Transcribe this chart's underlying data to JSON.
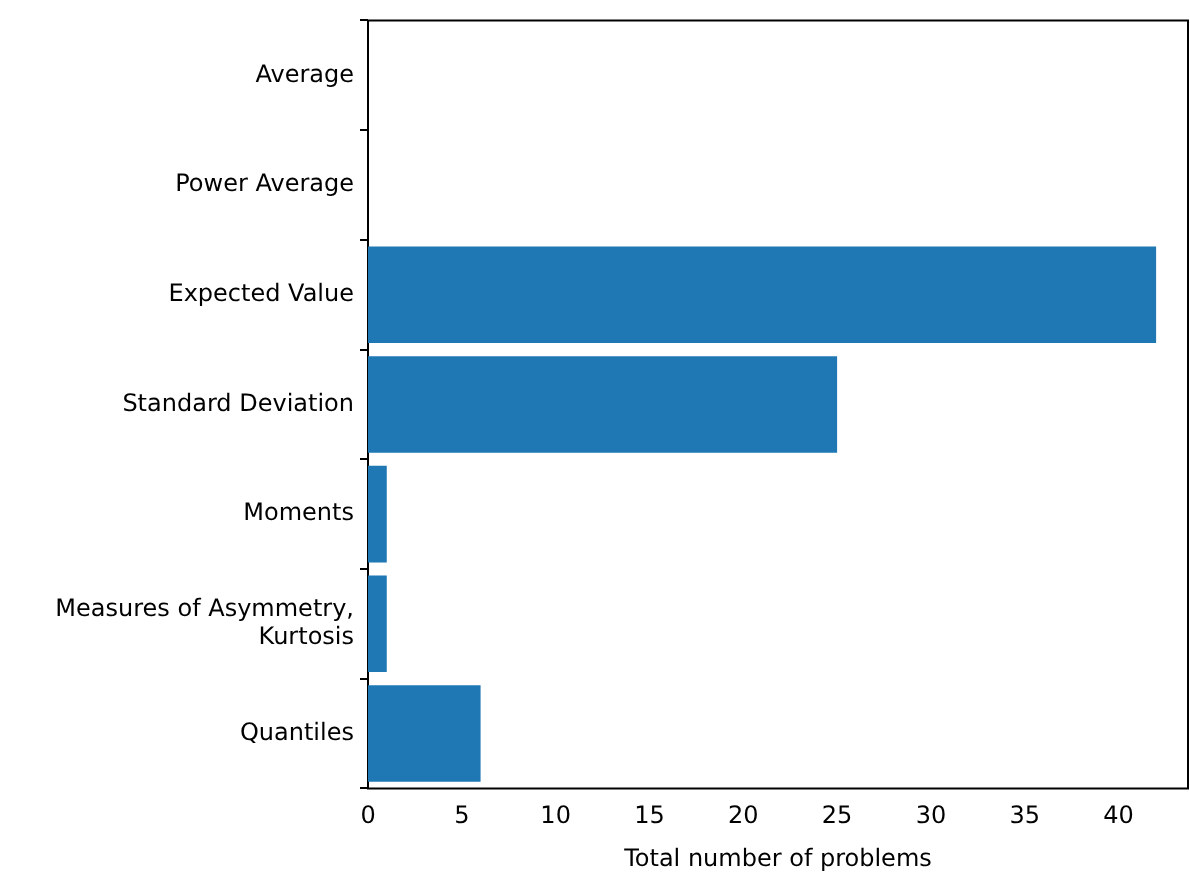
{
  "chart_data": {
    "type": "bar",
    "orientation": "horizontal",
    "xlabel": "Total number of problems",
    "categories": [
      "Average",
      "Power Average",
      "Expected Value",
      "Standard Deviation",
      "Moments",
      "Measures of Asymmetry,\nKurtosis",
      "Quantiles"
    ],
    "values": [
      0,
      0,
      42,
      25,
      1,
      1,
      6
    ],
    "color": "#1f77b4",
    "xlim": [
      0,
      43.7
    ],
    "xticks": [
      0,
      5,
      10,
      15,
      20,
      25,
      30,
      35,
      40
    ],
    "grid": false,
    "legend": false
  }
}
